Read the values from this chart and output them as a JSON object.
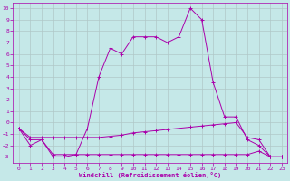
{
  "xlabel": "Windchill (Refroidissement éolien,°C)",
  "xlim": [
    -0.5,
    23.5
  ],
  "ylim": [
    -3.5,
    10.5
  ],
  "xticks": [
    0,
    1,
    2,
    3,
    4,
    5,
    6,
    7,
    8,
    9,
    10,
    11,
    12,
    13,
    14,
    15,
    16,
    17,
    18,
    19,
    20,
    21,
    22,
    23
  ],
  "yticks": [
    -3,
    -2,
    -1,
    0,
    1,
    2,
    3,
    4,
    5,
    6,
    7,
    8,
    9,
    10
  ],
  "bg_color": "#c5e8e8",
  "line_color": "#aa00aa",
  "grid_color": "#b0c8c8",
  "lines": [
    {
      "x": [
        0,
        1,
        2,
        3,
        4,
        5,
        6,
        7,
        8,
        9,
        10,
        11,
        12,
        13,
        14,
        15,
        16,
        17,
        18,
        19,
        20,
        21,
        22,
        23
      ],
      "y": [
        -0.5,
        -2,
        -1.5,
        -3,
        -3,
        -2.8,
        -0.5,
        4,
        6.5,
        6,
        7.5,
        7.5,
        7.5,
        7,
        7.5,
        10,
        9,
        3.5,
        0.5,
        0.5,
        -1.5,
        -2,
        -3,
        -3
      ]
    },
    {
      "x": [
        0,
        1,
        2,
        3,
        4,
        5,
        6,
        7,
        8,
        9,
        10,
        11,
        12,
        13,
        14,
        15,
        16,
        17,
        18,
        19,
        20,
        21,
        22,
        23
      ],
      "y": [
        -0.5,
        -1.3,
        -1.3,
        -1.3,
        -1.3,
        -1.3,
        -1.3,
        -1.3,
        -1.2,
        -1.1,
        -0.9,
        -0.8,
        -0.7,
        -0.6,
        -0.5,
        -0.4,
        -0.3,
        -0.2,
        -0.1,
        0.0,
        -1.3,
        -1.5,
        -3,
        -3
      ]
    },
    {
      "x": [
        0,
        1,
        2,
        3,
        4,
        5,
        6,
        7,
        8,
        9,
        10,
        11,
        12,
        13,
        14,
        15,
        16,
        17,
        18,
        19,
        20,
        21,
        22,
        23
      ],
      "y": [
        -0.5,
        -1.5,
        -1.5,
        -2.8,
        -2.8,
        -2.8,
        -2.8,
        -2.8,
        -2.8,
        -2.8,
        -2.8,
        -2.8,
        -2.8,
        -2.8,
        -2.8,
        -2.8,
        -2.8,
        -2.8,
        -2.8,
        -2.8,
        -2.8,
        -2.5,
        -3,
        -3
      ]
    }
  ]
}
